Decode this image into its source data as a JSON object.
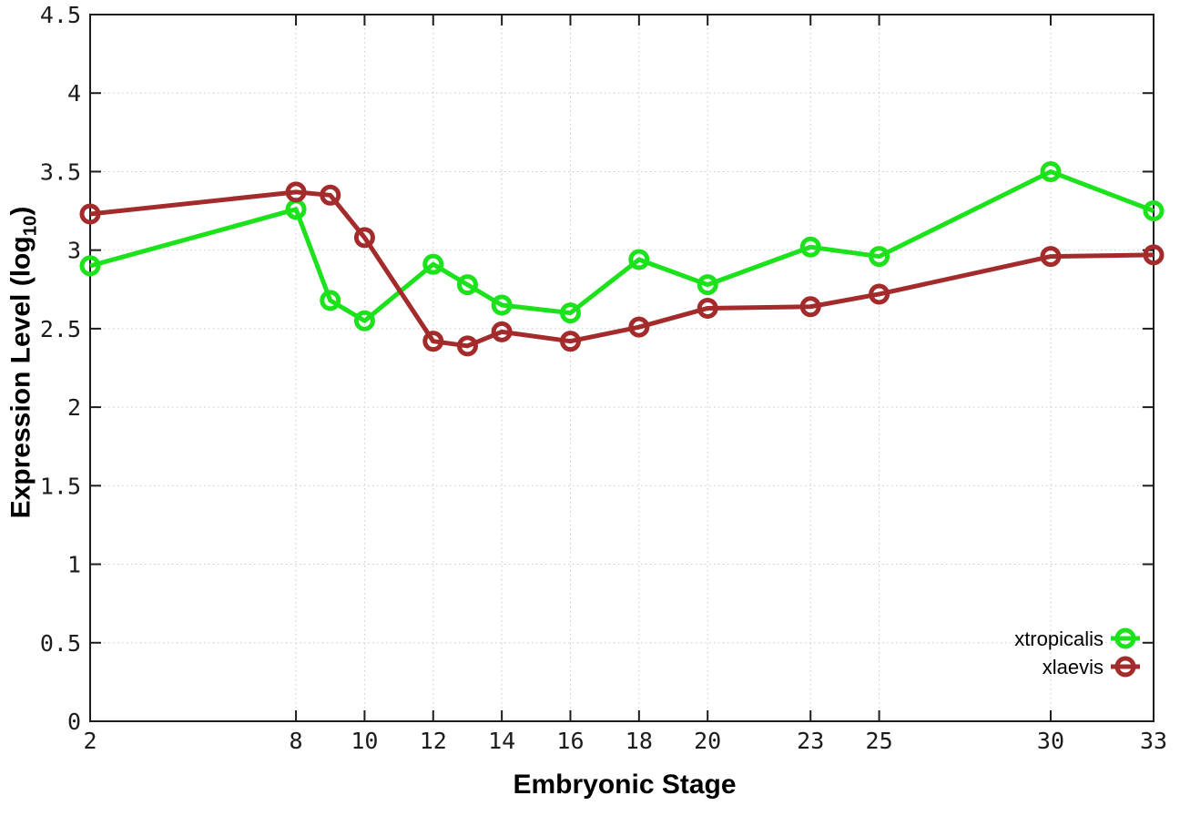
{
  "chart_data": {
    "type": "line",
    "title": "",
    "xlabel": "Embryonic Stage",
    "ylabel_prefix": "Expression Level (log",
    "ylabel_subscript": "10",
    "ylabel_suffix": ")",
    "xlim": [
      2,
      33
    ],
    "ylim": [
      0,
      4.5
    ],
    "x_ticks": [
      2,
      8,
      10,
      12,
      14,
      16,
      18,
      20,
      23,
      25,
      30,
      33
    ],
    "y_ticks": [
      0,
      0.5,
      1,
      1.5,
      2,
      2.5,
      3,
      3.5,
      4,
      4.5
    ],
    "grid": true,
    "legend_position": "inside-bottom-right",
    "x": [
      2,
      8,
      9,
      10,
      12,
      13,
      14,
      16,
      18,
      20,
      23,
      25,
      30,
      33
    ],
    "series": [
      {
        "name": "xtropicalis",
        "color": "#1be21b",
        "marker": "open-circle",
        "values": [
          2.9,
          3.26,
          2.68,
          2.55,
          2.91,
          2.78,
          2.65,
          2.6,
          2.94,
          2.78,
          3.02,
          2.96,
          3.5,
          3.25
        ]
      },
      {
        "name": "xlaevis",
        "color": "#a42b2b",
        "marker": "open-circle",
        "values": [
          3.23,
          3.37,
          3.35,
          3.08,
          2.42,
          2.39,
          2.48,
          2.42,
          2.51,
          2.63,
          2.64,
          2.72,
          2.96,
          2.97
        ]
      }
    ],
    "colors": {
      "grid": "#c9c9c9",
      "axis": "#1c1c1c",
      "text": "#1c1c1c"
    }
  }
}
